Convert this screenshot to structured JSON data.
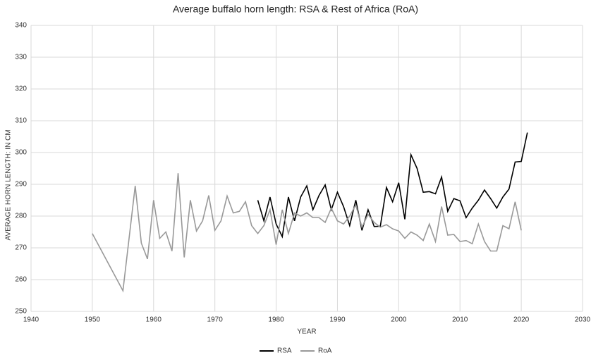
{
  "chart_data": {
    "type": "line",
    "title": "Average buffalo horn length: RSA & Rest of Africa (RoA)",
    "x_label": "YEAR",
    "y_label": "AVERAGE HORN LENGTH: IN CM",
    "xlim": [
      1940,
      2030
    ],
    "xticks": [
      1940,
      1950,
      1960,
      1970,
      1980,
      1990,
      2000,
      2010,
      2020,
      2030
    ],
    "ylim": [
      250,
      340
    ],
    "yticks": [
      250,
      260,
      270,
      280,
      290,
      300,
      310,
      320,
      330,
      340
    ],
    "grid": true,
    "legend": "bottom",
    "series": [
      {
        "name": "RSA",
        "color": "#000000",
        "x": [
          1977,
          1978,
          1979,
          1980,
          1981,
          1982,
          1983,
          1984,
          1985,
          1986,
          1987,
          1988,
          1989,
          1990,
          1991,
          1992,
          1993,
          1994,
          1995,
          1996,
          1997,
          1998,
          1999,
          2000,
          2001,
          2002,
          2003,
          2004,
          2005,
          2006,
          2007,
          2008,
          2009,
          2010,
          2011,
          2012,
          2013,
          2014,
          2015,
          2016,
          2017,
          2018,
          2019,
          2020,
          2021
        ],
        "values": [
          285,
          278.5,
          286,
          277.5,
          273.5,
          286,
          278.5,
          286,
          289.5,
          282,
          286.5,
          289.8,
          282,
          287.5,
          283,
          277,
          285,
          275.5,
          282,
          276.7,
          276.8,
          289,
          284.5,
          290.5,
          279,
          299.3,
          295,
          287.5,
          287.7,
          287,
          292.3,
          281.5,
          285.5,
          284.8,
          279.5,
          282.5,
          285,
          288.2,
          285.5,
          282.5,
          286,
          288.5,
          297,
          297.2,
          306.3
        ]
      },
      {
        "name": "RoA",
        "color": "#999999",
        "x": [
          1950,
          1955,
          1957,
          1958,
          1959,
          1960,
          1961,
          1962,
          1963,
          1964,
          1965,
          1966,
          1967,
          1968,
          1969,
          1970,
          1971,
          1972,
          1973,
          1974,
          1975,
          1976,
          1977,
          1978,
          1979,
          1980,
          1981,
          1982,
          1983,
          1984,
          1985,
          1986,
          1987,
          1988,
          1989,
          1990,
          1991,
          1992,
          1993,
          1994,
          1995,
          1996,
          1997,
          1998,
          1999,
          2000,
          2001,
          2002,
          2003,
          2004,
          2005,
          2006,
          2007,
          2008,
          2009,
          2010,
          2011,
          2012,
          2013,
          2014,
          2015,
          2016,
          2017,
          2018,
          2019,
          2020
        ],
        "values": [
          274.5,
          256.5,
          289.5,
          271.5,
          266.5,
          285,
          273,
          275,
          269,
          293.5,
          267,
          285,
          275.3,
          278.5,
          286.5,
          275.5,
          278.5,
          286.3,
          281,
          281.5,
          284.5,
          277,
          274.5,
          277,
          282,
          271,
          282,
          274.5,
          281,
          280,
          281,
          279.5,
          279.5,
          278,
          282.5,
          278.5,
          277.5,
          280,
          283.5,
          276.5,
          280.5,
          278,
          276.5,
          277.3,
          276,
          275.3,
          273,
          275,
          274,
          272.3,
          277.5,
          272,
          283,
          274,
          274.2,
          272,
          272.3,
          271.3,
          277.5,
          272,
          269,
          269,
          277,
          276,
          284.5,
          275.5
        ]
      }
    ]
  }
}
